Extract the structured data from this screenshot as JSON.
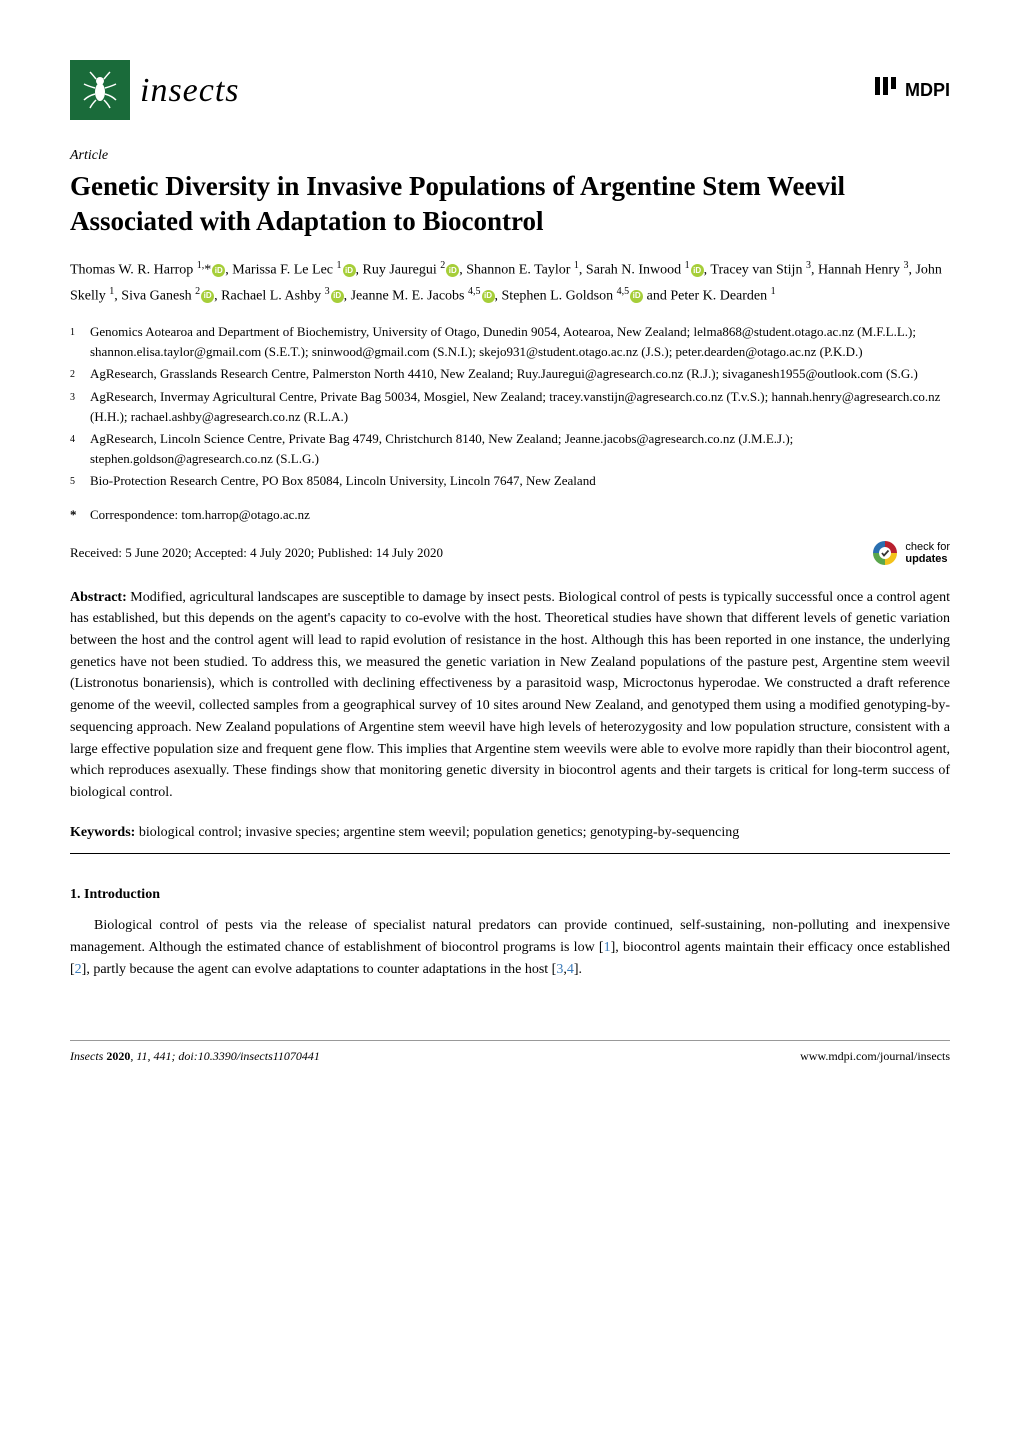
{
  "journal": {
    "name": "insects",
    "publisher": "MDPI",
    "logo_bg": "#1a6b3a"
  },
  "article_type": "Article",
  "title": "Genetic Diversity in Invasive Populations of Argentine Stem Weevil Associated with Adaptation to Biocontrol",
  "authors_html": "Thomas W. R. Harrop <sup>1,</sup>*<span class='orcid' data-name='orcid-icon' data-interactable='false'></span>, Marissa F. Le Lec <sup>1</sup><span class='orcid' data-name='orcid-icon' data-interactable='false'></span>, Ruy Jauregui <sup>2</sup><span class='orcid' data-name='orcid-icon' data-interactable='false'></span>, Shannon E. Taylor <sup>1</sup>, Sarah N. Inwood <sup>1</sup><span class='orcid' data-name='orcid-icon' data-interactable='false'></span>, Tracey van Stijn <sup>3</sup>, Hannah Henry <sup>3</sup>, John Skelly <sup>1</sup>, Siva Ganesh <sup>2</sup><span class='orcid' data-name='orcid-icon' data-interactable='false'></span>, Rachael L. Ashby <sup>3</sup><span class='orcid' data-name='orcid-icon' data-interactable='false'></span>, Jeanne M. E. Jacobs <sup>4,5</sup><span class='orcid' data-name='orcid-icon' data-interactable='false'></span>, Stephen L. Goldson <sup>4,5</sup><span class='orcid' data-name='orcid-icon' data-interactable='false'></span> and Peter K. Dearden <sup>1</sup>",
  "affiliations": [
    {
      "num": "1",
      "text": "Genomics Aotearoa and Department of Biochemistry, University of Otago, Dunedin 9054, Aotearoa, New Zealand; lelma868@student.otago.ac.nz (M.F.L.L.); shannon.elisa.taylor@gmail.com (S.E.T.); sninwood@gmail.com (S.N.I.); skejo931@student.otago.ac.nz (J.S.); peter.dearden@otago.ac.nz (P.K.D.)"
    },
    {
      "num": "2",
      "text": "AgResearch, Grasslands Research Centre, Palmerston North 4410, New Zealand; Ruy.Jauregui@agresearch.co.nz (R.J.); sivaganesh1955@outlook.com (S.G.)"
    },
    {
      "num": "3",
      "text": "AgResearch, Invermay Agricultural Centre, Private Bag 50034, Mosgiel, New Zealand; tracey.vanstijn@agresearch.co.nz (T.v.S.); hannah.henry@agresearch.co.nz (H.H.); rachael.ashby@agresearch.co.nz (R.L.A.)"
    },
    {
      "num": "4",
      "text": "AgResearch, Lincoln Science Centre, Private Bag 4749, Christchurch 8140, New Zealand; Jeanne.jacobs@agresearch.co.nz (J.M.E.J.); stephen.goldson@agresearch.co.nz (S.L.G.)"
    },
    {
      "num": "5",
      "text": "Bio-Protection Research Centre, PO Box 85084, Lincoln University, Lincoln 7647, New Zealand"
    }
  ],
  "correspondence": {
    "marker": "*",
    "text": "Correspondence: tom.harrop@otago.ac.nz"
  },
  "dates": "Received: 5 June 2020; Accepted: 4 July 2020; Published: 14 July 2020",
  "updates_badge": {
    "line1": "check for",
    "line2": "updates"
  },
  "abstract": {
    "label": "Abstract:",
    "text": " Modified, agricultural landscapes are susceptible to damage by insect pests. Biological control of pests is typically successful once a control agent has established, but this depends on the agent's capacity to co-evolve with the host. Theoretical studies have shown that different levels of genetic variation between the host and the control agent will lead to rapid evolution of resistance in the host. Although this has been reported in one instance, the underlying genetics have not been studied. To address this, we measured the genetic variation in New Zealand populations of the pasture pest, Argentine stem weevil (Listronotus bonariensis), which is controlled with declining effectiveness by a parasitoid wasp, Microctonus hyperodae. We constructed a draft reference genome of the weevil, collected samples from a geographical survey of 10 sites around New Zealand, and genotyped them using a modified genotyping-by-sequencing approach. New Zealand populations of Argentine stem weevil have high levels of heterozygosity and low population structure, consistent with a large effective population size and frequent gene flow. This implies that Argentine stem weevils were able to evolve more rapidly than their biocontrol agent, which reproduces asexually. These findings show that monitoring genetic diversity in biocontrol agents and their targets is critical for long-term success of biological control."
  },
  "keywords": {
    "label": "Keywords:",
    "text": " biological control; invasive species; argentine stem weevil; population genetics; genotyping-by-sequencing"
  },
  "section1": {
    "heading": "1. Introduction",
    "para1_pre": "Biological control of pests via the release of specialist natural predators can provide continued, self-sustaining, non-polluting and inexpensive management. Although the estimated chance of establishment of biocontrol programs is low [",
    "cite1": "1",
    "para1_mid1": "], biocontrol agents maintain their efficacy once established [",
    "cite2": "2",
    "para1_mid2": "], partly because the agent can evolve adaptations to counter adaptations in the host [",
    "cite3": "3",
    "cite_sep": ",",
    "cite4": "4",
    "para1_end": "]."
  },
  "footer": {
    "left_pre": "Insects ",
    "left_bold": "2020",
    "left_post": ", 11, 441; doi:10.3390/insects11070441",
    "right": "www.mdpi.com/journal/insects"
  },
  "colors": {
    "cite_link": "#3a7ab8",
    "orcid": "#a6ce39",
    "updates_red": "#b8202f",
    "updates_green": "#5aa64b",
    "updates_yellow": "#f3c21b",
    "updates_blue": "#2a6fb0"
  }
}
